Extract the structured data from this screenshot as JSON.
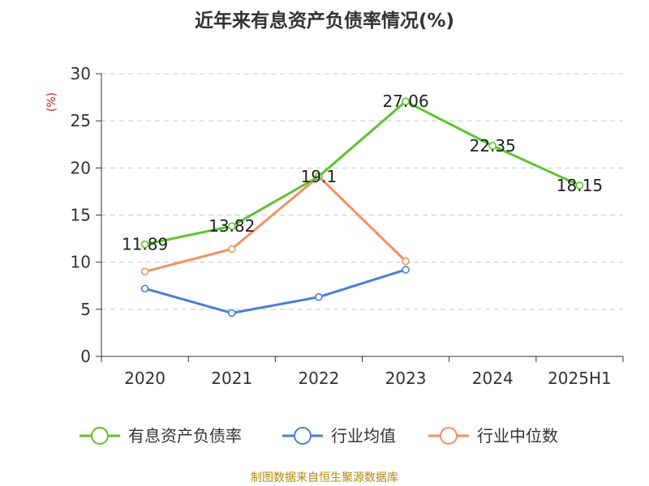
{
  "chart_data": {
    "type": "line",
    "title": "近年来有息资产负债率情况(%)",
    "ylabel": "(%)",
    "xlabel": "",
    "categories": [
      "2020",
      "2021",
      "2022",
      "2023",
      "2024",
      "2025H1"
    ],
    "ylim": [
      0,
      30
    ],
    "yticks": [
      0,
      5,
      10,
      15,
      20,
      25,
      30
    ],
    "grid": true,
    "legend_position": "bottom",
    "series": [
      {
        "name": "有息资产负债率",
        "color": "#5fc22e",
        "values": [
          11.89,
          13.82,
          19.1,
          27.06,
          22.35,
          18.15
        ],
        "labels": [
          "11.89",
          "13.82",
          "19.1",
          "27.06",
          "22.35",
          "18.15"
        ],
        "show_labels": true
      },
      {
        "name": "行业均值",
        "color": "#4a7fd6",
        "values": [
          7.2,
          4.6,
          6.3,
          9.2,
          null,
          null
        ],
        "show_labels": false
      },
      {
        "name": "行业中位数",
        "color": "#f39064",
        "values": [
          9.0,
          11.4,
          19.1,
          10.1,
          null,
          null
        ],
        "show_labels": false
      }
    ]
  },
  "source": {
    "text": "制图数据来自恒生聚源数据库",
    "color": "#b8860b"
  },
  "colors": {
    "axis": "#333333",
    "grid": "#c8c8c8",
    "ylabel": "#cc2222"
  }
}
